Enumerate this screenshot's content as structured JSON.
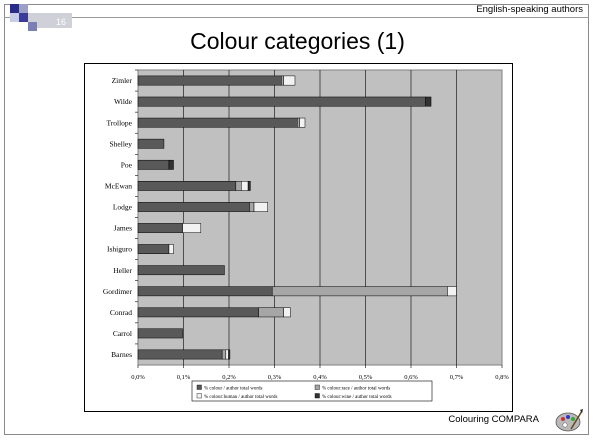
{
  "header": {
    "slide_number": "16",
    "section": "English-speaking authors"
  },
  "title": "Colour categories (1)",
  "footer": {
    "text": "Colouring COMPARA",
    "logo_icon": "paint-palette-icon"
  },
  "colors": {
    "plot_bg": "#c0c0c0",
    "colour": "#595959",
    "race": "#a6a6a6",
    "human": "#f2f2f2",
    "wine": "#333333"
  },
  "chart_data": {
    "type": "bar",
    "orientation": "horizontal",
    "stacked": true,
    "categories": [
      "Zimler",
      "Wilde",
      "Trollope",
      "Shelley",
      "Poe",
      "McEwan",
      "Lodge",
      "James",
      "Ishiguro",
      "Heller",
      "Gordimer",
      "Conrad",
      "Carrol",
      "Barnes"
    ],
    "series": [
      {
        "name": "% colour / author total words",
        "key": "colour",
        "values": [
          0.315,
          0.632,
          0.35,
          0.057,
          0.068,
          0.215,
          0.245,
          0.098,
          0.068,
          0.19,
          0.295,
          0.265,
          0.098,
          0.185
        ]
      },
      {
        "name": "% colour:race / author total words",
        "key": "race",
        "values": [
          0.005,
          0.0,
          0.005,
          0.0,
          0.0,
          0.012,
          0.01,
          0.0,
          0.0,
          0.0,
          0.385,
          0.055,
          0.0,
          0.008
        ]
      },
      {
        "name": "% colour:human / author total words",
        "key": "human",
        "values": [
          0.025,
          0.0,
          0.012,
          0.0,
          0.0,
          0.015,
          0.03,
          0.04,
          0.01,
          0.0,
          0.02,
          0.015,
          0.0,
          0.006
        ]
      },
      {
        "name": "% colour:wine / author total words",
        "key": "wine",
        "values": [
          0.0,
          0.012,
          0.0,
          0.0,
          0.01,
          0.005,
          0.0,
          0.0,
          0.0,
          0.0,
          0.0,
          0.0,
          0.0,
          0.003
        ]
      }
    ],
    "x_ticks": [
      "0,0%",
      "0,1%",
      "0,2%",
      "0,3%",
      "0,4%",
      "0,5%",
      "0,6%",
      "0,7%",
      "0,8%"
    ],
    "xlim": [
      0,
      0.8
    ],
    "grid": true,
    "legend_position": "bottom"
  }
}
